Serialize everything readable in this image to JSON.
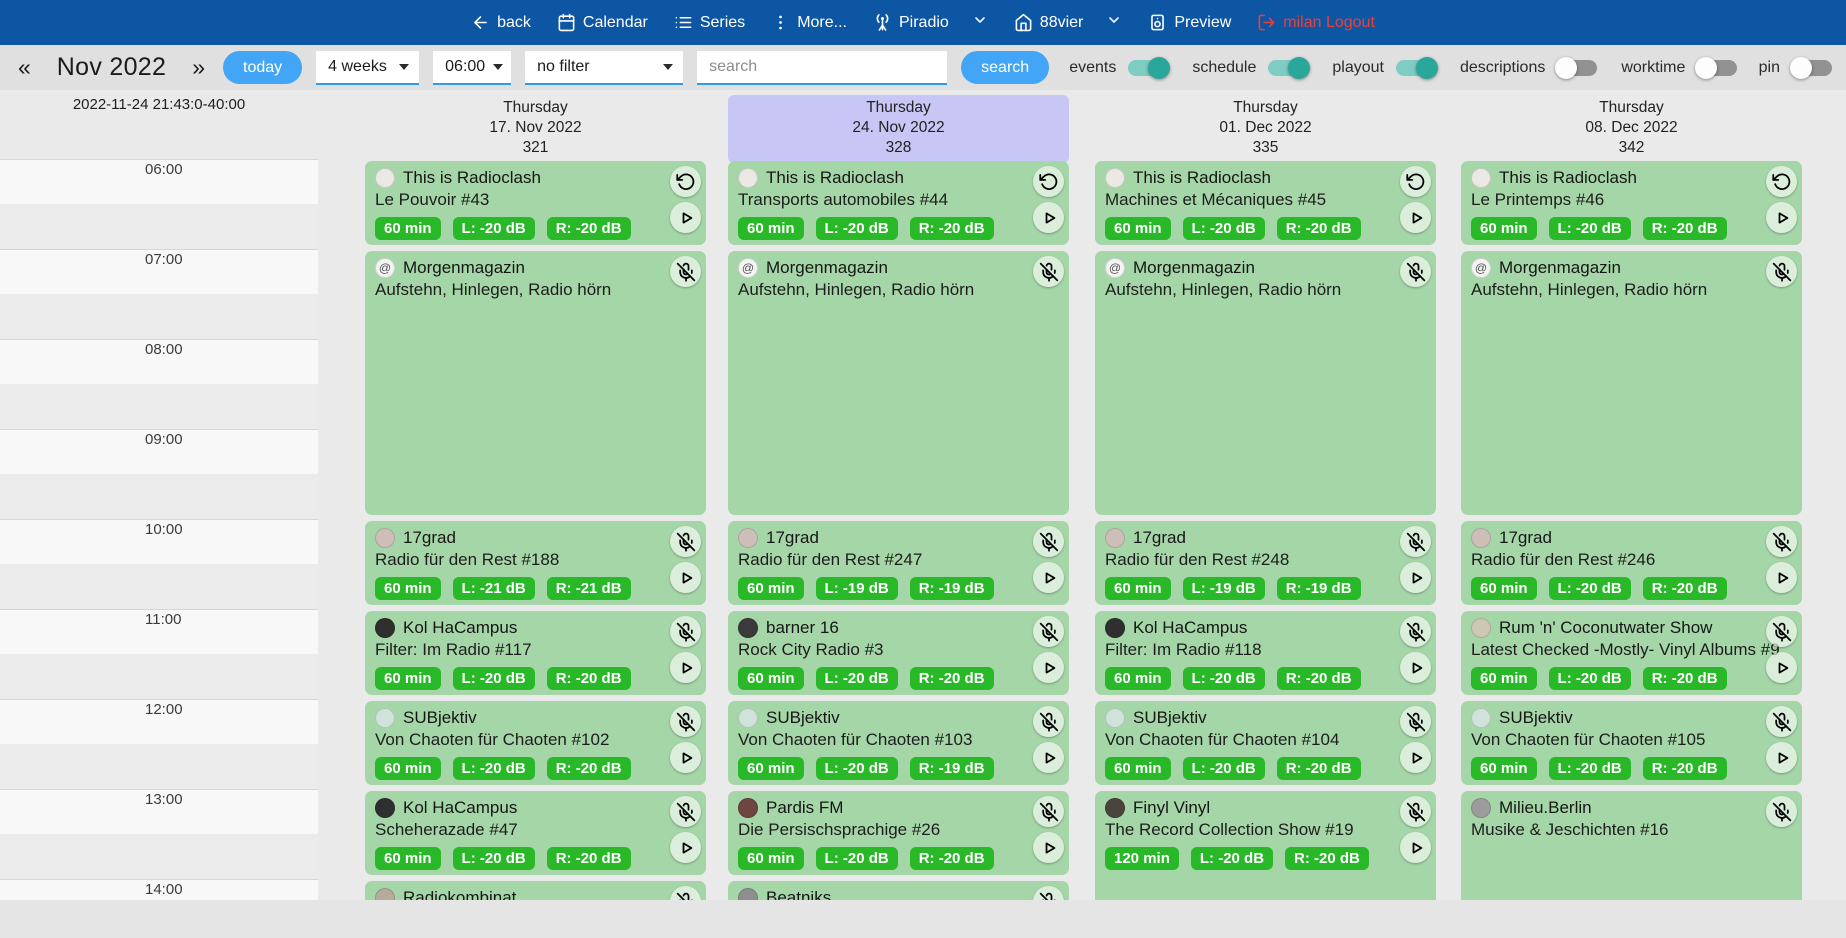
{
  "colors": {
    "navbar_bg": "#0d56a4",
    "accent_blue": "#42a5f5",
    "logout_red": "#e8413c",
    "toggle_on": "#2aa79b",
    "card_green": "#a5d6a7",
    "badge_green": "#28b828",
    "highlight_lavender": "#c8c6f4"
  },
  "navbar": {
    "items": [
      {
        "id": "back",
        "label": "back",
        "icon": "arrow-left"
      },
      {
        "id": "calendar",
        "label": "Calendar",
        "icon": "calendar"
      },
      {
        "id": "series",
        "label": "Series",
        "icon": "list"
      },
      {
        "id": "more",
        "label": "More...",
        "icon": "more-vert"
      },
      {
        "id": "piradio",
        "label": "Piradio",
        "icon": "antenna",
        "chevron": true
      },
      {
        "id": "88vier",
        "label": "88vier",
        "icon": "home",
        "chevron": true
      },
      {
        "id": "preview",
        "label": "Preview",
        "icon": "speaker"
      },
      {
        "id": "logout",
        "label": "milan Logout",
        "icon": "log-out",
        "red": true
      }
    ]
  },
  "toolbar": {
    "prev": "«",
    "month": "Nov 2022",
    "next": "»",
    "today_label": "today",
    "range_select": "4 weeks",
    "time_select": "06:00",
    "filter_select": "no filter",
    "search_placeholder": "search",
    "search_button": "search",
    "toggles": [
      {
        "label": "events",
        "on": true
      },
      {
        "label": "schedule",
        "on": true
      },
      {
        "label": "playout",
        "on": true
      },
      {
        "label": "descriptions",
        "on": false
      },
      {
        "label": "worktime",
        "on": false
      }
    ],
    "pin": {
      "label": "pin",
      "on": false
    }
  },
  "grid": {
    "corner_label": "2022-11-24 21:43:0-40:00",
    "times": [
      "06:00",
      "07:00",
      "08:00",
      "09:00",
      "10:00",
      "11:00",
      "12:00",
      "13:00",
      "14:00"
    ],
    "days": [
      {
        "weekday": "Thursday",
        "date": "17. Nov 2022",
        "number": "321",
        "highlight": false,
        "events": [
          {
            "start": "06:00",
            "duration_min": 60,
            "show": "This is Radioclash",
            "episode": "Le Pouvoir #43",
            "badges": [
              "60 min",
              "L: -20 dB",
              "R: -20 dB"
            ],
            "top_icon": "replay",
            "play": true,
            "avatar_bg": "#ece9e4"
          },
          {
            "start": "07:00",
            "duration_min": 180,
            "show": "Morgenmagazin",
            "episode": "Aufstehn, Hinlegen, Radio hörn",
            "badges": [],
            "top_icon": "mic-off",
            "play": false,
            "avatar_bg": "#f4f4f4",
            "avatar_glyph": "@"
          },
          {
            "start": "10:00",
            "duration_min": 60,
            "show": "17grad",
            "episode": "Radio für den Rest #188",
            "badges": [
              "60 min",
              "L: -21 dB",
              "R: -21 dB"
            ],
            "top_icon": "mic-off",
            "play": true,
            "avatar_bg": "#cdbfb8"
          },
          {
            "start": "11:00",
            "duration_min": 60,
            "show": "Kol HaCampus",
            "episode": "Filter: Im Radio #117",
            "badges": [
              "60 min",
              "L: -20 dB",
              "R: -20 dB"
            ],
            "top_icon": "mic-off",
            "play": true,
            "avatar_bg": "#2f2f2f"
          },
          {
            "start": "12:00",
            "duration_min": 60,
            "show": "SUBjektiv",
            "episode": "Von Chaoten für Chaoten #102",
            "badges": [
              "60 min",
              "L: -20 dB",
              "R: -20 dB"
            ],
            "top_icon": "mic-off",
            "play": true,
            "avatar_bg": "#cfe3da"
          },
          {
            "start": "13:00",
            "duration_min": 60,
            "show": "Kol HaCampus",
            "episode": "Scheherazade #47",
            "badges": [
              "60 min",
              "L: -20 dB",
              "R: -20 dB"
            ],
            "top_icon": "mic-off",
            "play": true,
            "avatar_bg": "#2f2f2f"
          },
          {
            "start": "14:00",
            "duration_min": 60,
            "show": "Radiokombinat",
            "episode": "",
            "badges": [],
            "top_icon": "mic-off",
            "play": false,
            "avatar_bg": "#b5ab9d"
          }
        ]
      },
      {
        "weekday": "Thursday",
        "date": "24. Nov 2022",
        "number": "328",
        "highlight": true,
        "events": [
          {
            "start": "06:00",
            "duration_min": 60,
            "show": "This is Radioclash",
            "episode": "Transports automobiles #44",
            "badges": [
              "60 min",
              "L: -20 dB",
              "R: -20 dB"
            ],
            "top_icon": "replay",
            "play": true,
            "avatar_bg": "#ece9e4"
          },
          {
            "start": "07:00",
            "duration_min": 180,
            "show": "Morgenmagazin",
            "episode": "Aufstehn, Hinlegen, Radio hörn",
            "badges": [],
            "top_icon": "mic-off",
            "play": false,
            "avatar_bg": "#f4f4f4",
            "avatar_glyph": "@"
          },
          {
            "start": "10:00",
            "duration_min": 60,
            "show": "17grad",
            "episode": "Radio für den Rest #247",
            "badges": [
              "60 min",
              "L: -19 dB",
              "R: -19 dB"
            ],
            "top_icon": "mic-off",
            "play": true,
            "avatar_bg": "#cdbfb8"
          },
          {
            "start": "11:00",
            "duration_min": 60,
            "show": "barner 16",
            "episode": "Rock City Radio #3",
            "badges": [
              "60 min",
              "L: -20 dB",
              "R: -20 dB"
            ],
            "top_icon": "mic-off",
            "play": true,
            "avatar_bg": "#3b3b3b"
          },
          {
            "start": "12:00",
            "duration_min": 60,
            "show": "SUBjektiv",
            "episode": "Von Chaoten für Chaoten #103",
            "badges": [
              "60 min",
              "L: -20 dB",
              "R: -19 dB"
            ],
            "top_icon": "mic-off",
            "play": true,
            "avatar_bg": "#cfe3da"
          },
          {
            "start": "13:00",
            "duration_min": 60,
            "show": "Pardis FM",
            "episode": "Die Persischsprachige #26",
            "badges": [
              "60 min",
              "L: -20 dB",
              "R: -20 dB"
            ],
            "top_icon": "mic-off",
            "play": true,
            "avatar_bg": "#6e463f"
          },
          {
            "start": "14:00",
            "duration_min": 60,
            "show": "Beatniks",
            "episode": "",
            "badges": [],
            "top_icon": "mic-off",
            "play": false,
            "avatar_bg": "#8f8f8f"
          }
        ]
      },
      {
        "weekday": "Thursday",
        "date": "01. Dec 2022",
        "number": "335",
        "highlight": false,
        "events": [
          {
            "start": "06:00",
            "duration_min": 60,
            "show": "This is Radioclash",
            "episode": "Machines et Mécaniques #45",
            "badges": [
              "60 min",
              "L: -20 dB",
              "R: -20 dB"
            ],
            "top_icon": "replay",
            "play": true,
            "avatar_bg": "#ece9e4"
          },
          {
            "start": "07:00",
            "duration_min": 180,
            "show": "Morgenmagazin",
            "episode": "Aufstehn, Hinlegen, Radio hörn",
            "badges": [],
            "top_icon": "mic-off",
            "play": false,
            "avatar_bg": "#f4f4f4",
            "avatar_glyph": "@"
          },
          {
            "start": "10:00",
            "duration_min": 60,
            "show": "17grad",
            "episode": "Radio für den Rest #248",
            "badges": [
              "60 min",
              "L: -19 dB",
              "R: -19 dB"
            ],
            "top_icon": "mic-off",
            "play": true,
            "avatar_bg": "#cdbfb8"
          },
          {
            "start": "11:00",
            "duration_min": 60,
            "show": "Kol HaCampus",
            "episode": "Filter: Im Radio #118",
            "badges": [
              "60 min",
              "L: -20 dB",
              "R: -20 dB"
            ],
            "top_icon": "mic-off",
            "play": true,
            "avatar_bg": "#2f2f2f"
          },
          {
            "start": "12:00",
            "duration_min": 60,
            "show": "SUBjektiv",
            "episode": "Von Chaoten für Chaoten #104",
            "badges": [
              "60 min",
              "L: -20 dB",
              "R: -20 dB"
            ],
            "top_icon": "mic-off",
            "play": true,
            "avatar_bg": "#cfe3da"
          },
          {
            "start": "13:00",
            "duration_min": 120,
            "show": "Finyl Vinyl",
            "episode": "The Record Collection Show #19",
            "badges": [
              "120 min",
              "L: -20 dB",
              "R: -20 dB"
            ],
            "top_icon": "mic-off",
            "play": true,
            "avatar_bg": "#4a443e"
          }
        ]
      },
      {
        "weekday": "Thursday",
        "date": "08. Dec 2022",
        "number": "342",
        "highlight": false,
        "events": [
          {
            "start": "06:00",
            "duration_min": 60,
            "show": "This is Radioclash",
            "episode": "Le Printemps #46",
            "badges": [
              "60 min",
              "L: -20 dB",
              "R: -20 dB"
            ],
            "top_icon": "replay",
            "play": true,
            "avatar_bg": "#ece9e4"
          },
          {
            "start": "07:00",
            "duration_min": 180,
            "show": "Morgenmagazin",
            "episode": "Aufstehn, Hinlegen, Radio hörn",
            "badges": [],
            "top_icon": "mic-off",
            "play": false,
            "avatar_bg": "#f4f4f4",
            "avatar_glyph": "@"
          },
          {
            "start": "10:00",
            "duration_min": 60,
            "show": "17grad",
            "episode": "Radio für den Rest #246",
            "badges": [
              "60 min",
              "L: -20 dB",
              "R: -20 dB"
            ],
            "top_icon": "mic-off",
            "play": true,
            "avatar_bg": "#cdbfb8"
          },
          {
            "start": "11:00",
            "duration_min": 60,
            "show": "Rum 'n' Coconutwater Show",
            "episode": "Latest Checked -Mostly- Vinyl Albums #9",
            "badges": [
              "60 min",
              "L: -20 dB",
              "R: -20 dB"
            ],
            "top_icon": "mic-off",
            "play": true,
            "avatar_bg": "#cdc7b4"
          },
          {
            "start": "12:00",
            "duration_min": 60,
            "show": "SUBjektiv",
            "episode": "Von Chaoten für Chaoten #105",
            "badges": [
              "60 min",
              "L: -20 dB",
              "R: -20 dB"
            ],
            "top_icon": "mic-off",
            "play": true,
            "avatar_bg": "#cfe3da"
          },
          {
            "start": "13:00",
            "duration_min": 120,
            "show": "Milieu.Berlin",
            "episode": "Musike & Jeschichten #16",
            "badges": [],
            "top_icon": "mic-off",
            "play": false,
            "avatar_bg": "#9c9c9c"
          }
        ]
      }
    ]
  }
}
